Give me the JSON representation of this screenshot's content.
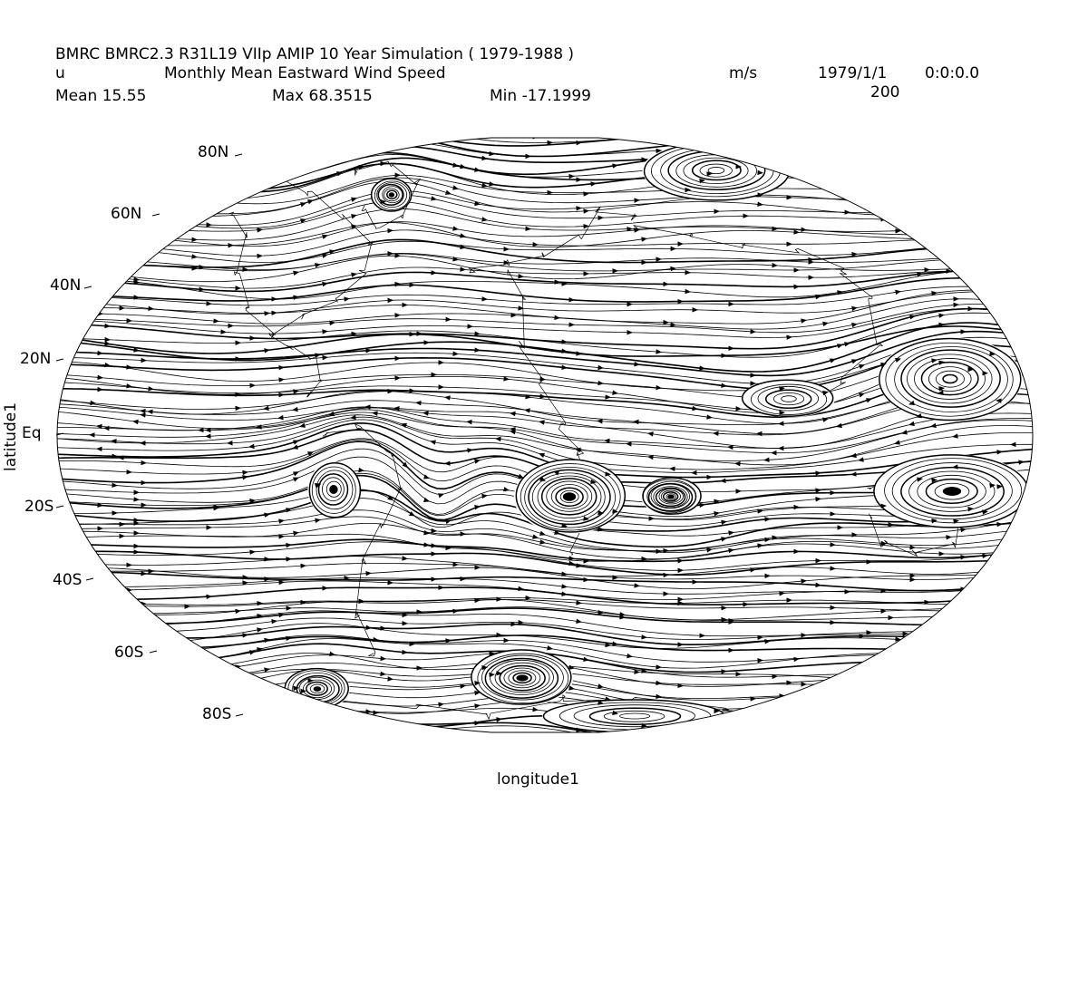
{
  "header": {
    "title": "BMRC BMRC2.3 R31L19 VIIp AMIP 10 Year Simulation ( 1979-1988 )",
    "var_name": "u",
    "long_name": "Monthly Mean Eastward Wind Speed",
    "units": "m/s",
    "date": "1979/1/1",
    "time": "0:0:0.0",
    "mean": "Mean 15.55",
    "max": "Max 68.3515",
    "min": "Min -17.1999",
    "level": "200"
  },
  "axes": {
    "xlabel": "longitude1",
    "ylabel": "latitude1",
    "lat_labels": [
      "80N",
      "60N",
      "40N",
      "20N",
      "Eq",
      "20S",
      "40S",
      "60S",
      "80S"
    ]
  },
  "map": {
    "projection": "Robinson-like ellipse",
    "plot_type": "streamlines",
    "line_color": "#000000",
    "background": "#ffffff"
  }
}
